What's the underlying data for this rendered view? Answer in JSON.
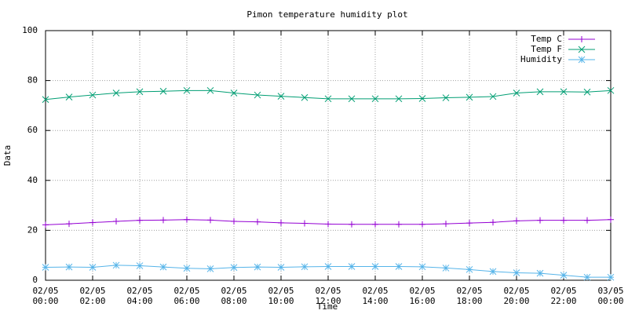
{
  "chart_data": {
    "type": "line",
    "title": "Pimon temperature   humidity plot",
    "x_label": "Time",
    "y_label": "Data",
    "x": [
      0,
      1,
      2,
      3,
      4,
      5,
      6,
      7,
      8,
      9,
      10,
      11,
      12,
      13,
      14,
      15,
      16,
      17,
      18,
      19,
      20,
      21,
      22,
      23,
      24
    ],
    "xlim": [
      0,
      24
    ],
    "xticks": [
      {
        "value": 0,
        "label": "02/05 00:00"
      },
      {
        "value": 2,
        "label": "02/05 02:00"
      },
      {
        "value": 4,
        "label": "02/05 04:00"
      },
      {
        "value": 6,
        "label": "02/05 06:00"
      },
      {
        "value": 8,
        "label": "02/05 08:00"
      },
      {
        "value": 10,
        "label": "02/05 10:00"
      },
      {
        "value": 12,
        "label": "02/05 12:00"
      },
      {
        "value": 14,
        "label": "02/05 14:00"
      },
      {
        "value": 16,
        "label": "02/05 16:00"
      },
      {
        "value": 18,
        "label": "02/05 18:00"
      },
      {
        "value": 20,
        "label": "02/05 20:00"
      },
      {
        "value": 22,
        "label": "02/05 22:00"
      },
      {
        "value": 24,
        "label": "03/05 00:00"
      }
    ],
    "ylim": [
      0,
      100
    ],
    "yticks": [
      0,
      20,
      40,
      60,
      80,
      100
    ],
    "grid": true,
    "legend": "top-right",
    "series": [
      {
        "name": "Temp C",
        "color": "#9400d3",
        "marker": "plus",
        "values": [
          22.2,
          22.6,
          23.1,
          23.6,
          24.0,
          24.1,
          24.3,
          24.1,
          23.6,
          23.4,
          23.0,
          22.8,
          22.5,
          22.4,
          22.4,
          22.4,
          22.4,
          22.6,
          22.9,
          23.2,
          23.8,
          24.0,
          24.0,
          24.0,
          24.3
        ]
      },
      {
        "name": "Temp F",
        "color": "#009e73",
        "marker": "cross",
        "values": [
          72.4,
          73.4,
          74.2,
          75.0,
          75.5,
          75.7,
          76.0,
          76.0,
          75.0,
          74.2,
          73.7,
          73.2,
          72.7,
          72.7,
          72.7,
          72.7,
          72.8,
          73.1,
          73.3,
          73.6,
          75.0,
          75.5,
          75.5,
          75.4,
          76.0
        ]
      },
      {
        "name": "Humidity",
        "color": "#56b4e9",
        "marker": "star",
        "values": [
          5.2,
          5.3,
          5.2,
          6.0,
          5.8,
          5.3,
          4.8,
          4.6,
          5.1,
          5.3,
          5.2,
          5.4,
          5.5,
          5.5,
          5.5,
          5.5,
          5.4,
          4.9,
          4.3,
          3.5,
          3.0,
          2.8,
          2.0,
          1.2,
          1.2
        ]
      }
    ]
  }
}
